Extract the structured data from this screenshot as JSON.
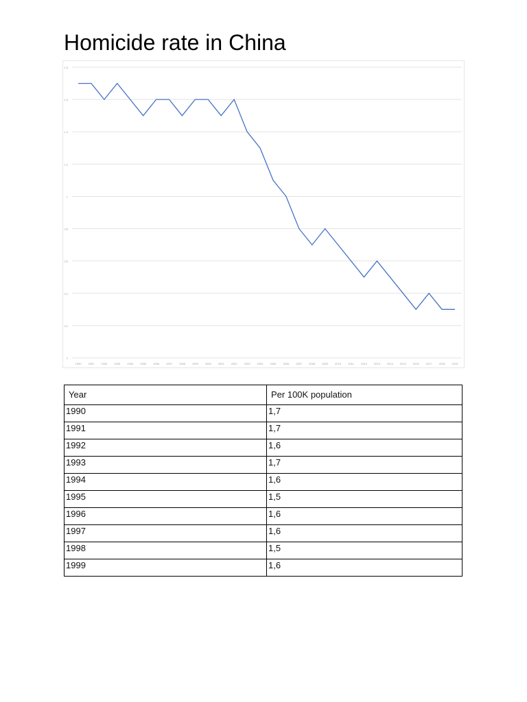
{
  "title": "Homicide rate in China",
  "colors": {
    "line": "#4472c4",
    "grid": "#e3e3e3",
    "axis_text": "#a0a0a0"
  },
  "table": {
    "headers": [
      "Year",
      "Per 100K population"
    ],
    "rows": [
      [
        "1990",
        "1,7"
      ],
      [
        "1991",
        "1,7"
      ],
      [
        "1992",
        "1,6"
      ],
      [
        "1993",
        "1,7"
      ],
      [
        "1994",
        "1,6"
      ],
      [
        "1995",
        "1,5"
      ],
      [
        "1996",
        "1,6"
      ],
      [
        "1997",
        "1,6"
      ],
      [
        "1998",
        "1,5"
      ],
      [
        "1999",
        "1,6"
      ]
    ]
  },
  "chart_data": {
    "type": "line",
    "title": "Homicide rate in China",
    "xlabel": "",
    "ylabel": "",
    "categories": [
      "1990",
      "1991",
      "1992",
      "1993",
      "1994",
      "1995",
      "1996",
      "1997",
      "1998",
      "1999",
      "2000",
      "2001",
      "2002",
      "2003",
      "2004",
      "2005",
      "2006",
      "2007",
      "2008",
      "2009",
      "2010",
      "2011",
      "2012",
      "2013",
      "2014",
      "2015",
      "2016",
      "2017",
      "2018",
      "2019"
    ],
    "series": [
      {
        "name": "Per 100K population",
        "values": [
          1.7,
          1.7,
          1.6,
          1.7,
          1.6,
          1.5,
          1.6,
          1.6,
          1.5,
          1.6,
          1.6,
          1.5,
          1.6,
          1.4,
          1.3,
          1.1,
          1.0,
          0.8,
          0.7,
          0.8,
          0.7,
          0.6,
          0.5,
          0.6,
          0.5,
          0.4,
          0.3,
          0.4,
          0.3,
          0.3
        ]
      }
    ],
    "yticks": [
      "0",
      "0,2",
      "0,4",
      "0,6",
      "0,8",
      "1",
      "1,2",
      "1,4",
      "1,6",
      "1,8"
    ],
    "ylim": [
      0,
      1.8
    ],
    "grid": true,
    "legend": "none"
  }
}
